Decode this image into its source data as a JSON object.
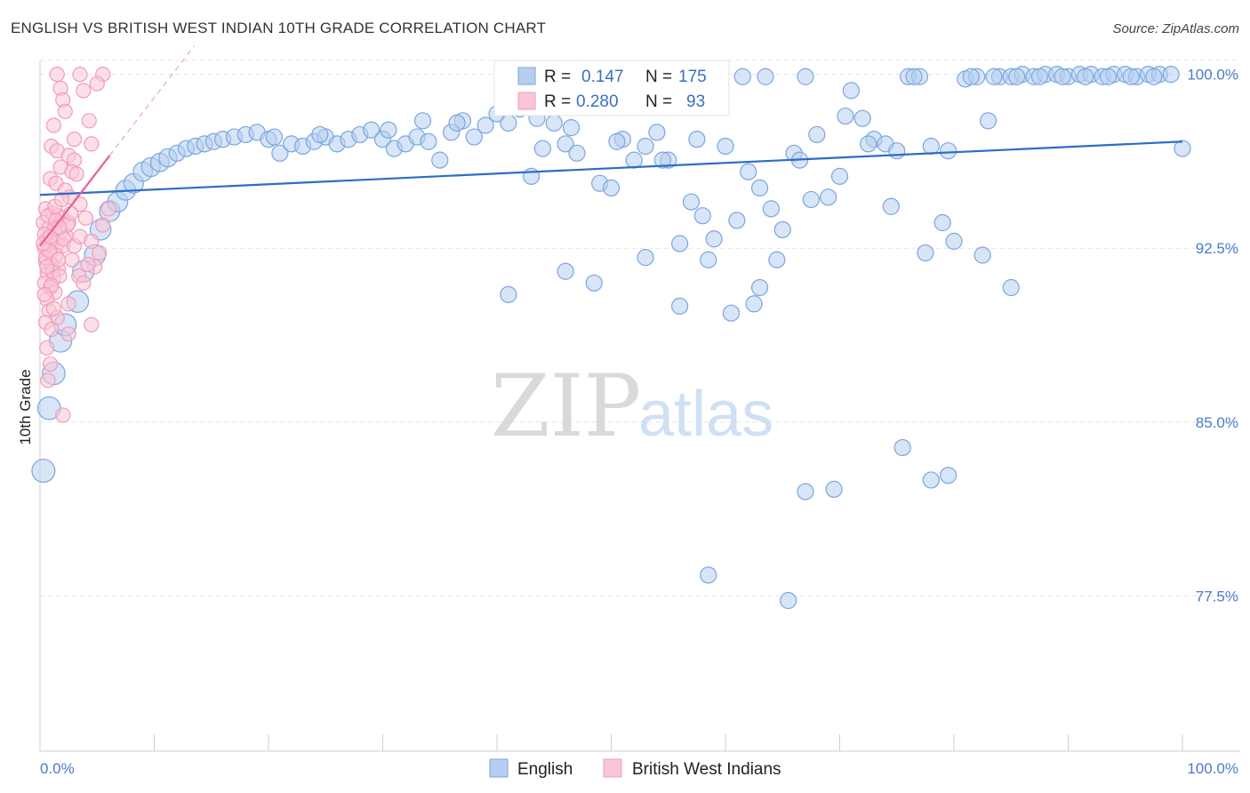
{
  "title": "ENGLISH VS BRITISH WEST INDIAN 10TH GRADE CORRELATION CHART",
  "source": "Source: ZipAtlas.com",
  "watermark": {
    "zip": "ZIP",
    "atlas": "atlas"
  },
  "chart_data": {
    "type": "scatter",
    "title": "ENGLISH VS BRITISH WEST INDIAN 10TH GRADE CORRELATION CHART",
    "xlabel": "",
    "ylabel": "10th Grade",
    "xlim": [
      0,
      100
    ],
    "ylim": [
      70.8,
      100.6
    ],
    "x_tick_labels": [
      "0.0%",
      "100.0%"
    ],
    "y_ticks": [
      77.5,
      85.0,
      92.5,
      100.0
    ],
    "y_tick_labels": [
      "77.5%",
      "85.0%",
      "92.5%",
      "100.0%"
    ],
    "grid": true,
    "legend_position": "bottom-center",
    "series": [
      {
        "name": "English",
        "color": "#7aa6e0",
        "line_color": "#2e6cc7",
        "R": "0.147",
        "N": "175",
        "trend": {
          "x": [
            0,
            100
          ],
          "y": [
            94.8,
            97.1
          ]
        },
        "points": [
          [
            0.3,
            82.9
          ],
          [
            0.8,
            85.6
          ],
          [
            1.2,
            87.1
          ],
          [
            1.8,
            88.5
          ],
          [
            2.2,
            89.2
          ],
          [
            3.3,
            90.2
          ],
          [
            3.8,
            91.5
          ],
          [
            4.8,
            92.2
          ],
          [
            5.3,
            93.3
          ],
          [
            6.1,
            94.1
          ],
          [
            6.8,
            94.5
          ],
          [
            7.5,
            95.0
          ],
          [
            8.2,
            95.3
          ],
          [
            9.0,
            95.8
          ],
          [
            9.7,
            96.0
          ],
          [
            10.5,
            96.2
          ],
          [
            11.2,
            96.4
          ],
          [
            12.0,
            96.6
          ],
          [
            12.8,
            96.8
          ],
          [
            13.6,
            96.9
          ],
          [
            14.4,
            97.0
          ],
          [
            15.2,
            97.1
          ],
          [
            16.0,
            97.2
          ],
          [
            17.0,
            97.3
          ],
          [
            18.0,
            97.4
          ],
          [
            19.0,
            97.5
          ],
          [
            20.0,
            97.2
          ],
          [
            21.0,
            96.6
          ],
          [
            22.0,
            97.0
          ],
          [
            23.0,
            96.9
          ],
          [
            24.0,
            97.1
          ],
          [
            25.0,
            97.3
          ],
          [
            26.0,
            97.0
          ],
          [
            27.0,
            97.2
          ],
          [
            28.0,
            97.4
          ],
          [
            29.0,
            97.6
          ],
          [
            30.0,
            97.2
          ],
          [
            31.0,
            96.8
          ],
          [
            32.0,
            97.0
          ],
          [
            33.0,
            97.3
          ],
          [
            34.0,
            97.1
          ],
          [
            35.0,
            96.3
          ],
          [
            36.0,
            97.5
          ],
          [
            37.0,
            98.0
          ],
          [
            38.0,
            97.3
          ],
          [
            39.0,
            97.8
          ],
          [
            40.0,
            98.3
          ],
          [
            41.0,
            97.9
          ],
          [
            42.0,
            98.5
          ],
          [
            43.0,
            95.6
          ],
          [
            44.0,
            96.8
          ],
          [
            45.0,
            97.9
          ],
          [
            46.0,
            97.0
          ],
          [
            47.0,
            96.6
          ],
          [
            48.0,
            98.7
          ],
          [
            49.0,
            95.3
          ],
          [
            50.0,
            95.1
          ],
          [
            51.0,
            97.2
          ],
          [
            52.0,
            96.3
          ],
          [
            53.0,
            96.9
          ],
          [
            54.0,
            97.5
          ],
          [
            55.0,
            96.3
          ],
          [
            56.0,
            92.7
          ],
          [
            57.0,
            94.5
          ],
          [
            58.0,
            93.9
          ],
          [
            59.0,
            92.9
          ],
          [
            60.0,
            96.9
          ],
          [
            61.0,
            93.7
          ],
          [
            62.0,
            95.8
          ],
          [
            63.0,
            95.1
          ],
          [
            64.0,
            94.2
          ],
          [
            65.0,
            93.3
          ],
          [
            66.0,
            96.6
          ],
          [
            67.0,
            99.9
          ],
          [
            68.0,
            97.4
          ],
          [
            69.0,
            94.7
          ],
          [
            70.0,
            95.6
          ],
          [
            71.0,
            99.3
          ],
          [
            72.0,
            98.1
          ],
          [
            73.0,
            97.2
          ],
          [
            74.0,
            97.0
          ],
          [
            75.0,
            96.7
          ],
          [
            76.0,
            99.9
          ],
          [
            77.0,
            99.9
          ],
          [
            78.0,
            96.9
          ],
          [
            79.0,
            93.6
          ],
          [
            80.0,
            92.8
          ],
          [
            81.0,
            99.8
          ],
          [
            82.0,
            99.9
          ],
          [
            83.0,
            98.0
          ],
          [
            84.0,
            99.9
          ],
          [
            85.0,
            99.9
          ],
          [
            86.0,
            100.0
          ],
          [
            87.0,
            99.9
          ],
          [
            88.0,
            100.0
          ],
          [
            89.0,
            100.0
          ],
          [
            90.0,
            99.9
          ],
          [
            91.0,
            100.0
          ],
          [
            92.0,
            100.0
          ],
          [
            93.0,
            99.9
          ],
          [
            94.0,
            100.0
          ],
          [
            95.0,
            100.0
          ],
          [
            96.0,
            99.9
          ],
          [
            97.0,
            100.0
          ],
          [
            98.0,
            100.0
          ],
          [
            99.0,
            100.0
          ],
          [
            100.0,
            96.8
          ],
          [
            20.5,
            97.3
          ],
          [
            24.5,
            97.4
          ],
          [
            30.5,
            97.6
          ],
          [
            33.5,
            98.0
          ],
          [
            36.5,
            97.9
          ],
          [
            41.5,
            98.8
          ],
          [
            43.5,
            98.1
          ],
          [
            46.5,
            97.7
          ],
          [
            50.5,
            97.1
          ],
          [
            52.5,
            99.6
          ],
          [
            54.5,
            96.3
          ],
          [
            57.5,
            97.2
          ],
          [
            59.5,
            99.0
          ],
          [
            61.5,
            99.9
          ],
          [
            63.5,
            99.9
          ],
          [
            64.5,
            92.0
          ],
          [
            66.5,
            96.3
          ],
          [
            67.5,
            94.6
          ],
          [
            70.5,
            98.2
          ],
          [
            72.5,
            97.0
          ],
          [
            74.5,
            94.3
          ],
          [
            76.5,
            99.9
          ],
          [
            77.5,
            92.3
          ],
          [
            79.5,
            96.7
          ],
          [
            81.5,
            99.9
          ],
          [
            83.5,
            99.9
          ],
          [
            85.5,
            99.9
          ],
          [
            87.5,
            99.9
          ],
          [
            89.5,
            99.9
          ],
          [
            91.5,
            99.9
          ],
          [
            93.5,
            99.9
          ],
          [
            95.5,
            99.9
          ],
          [
            97.5,
            99.9
          ],
          [
            41.0,
            90.5
          ],
          [
            46.0,
            91.5
          ],
          [
            48.5,
            91.0
          ],
          [
            53.0,
            92.1
          ],
          [
            56.0,
            90.0
          ],
          [
            58.5,
            92.0
          ],
          [
            60.5,
            89.7
          ],
          [
            62.5,
            90.1
          ],
          [
            63.0,
            90.8
          ],
          [
            82.5,
            92.2
          ],
          [
            85.0,
            90.8
          ],
          [
            75.5,
            83.9
          ],
          [
            78.0,
            82.5
          ],
          [
            79.5,
            82.7
          ],
          [
            67.0,
            82.0
          ],
          [
            69.5,
            82.1
          ],
          [
            58.5,
            78.4
          ],
          [
            65.5,
            77.3
          ]
        ]
      },
      {
        "name": "British West Indians",
        "color": "#f29bb8",
        "line_color": "#e8608e",
        "R": "0.280",
        "N": "93",
        "trend": {
          "x": [
            0,
            6.1
          ],
          "y": [
            92.6,
            96.5
          ]
        },
        "points": [
          [
            1.5,
            100.0
          ],
          [
            3.5,
            100.0
          ],
          [
            5.5,
            100.0
          ],
          [
            1.8,
            99.4
          ],
          [
            3.8,
            99.3
          ],
          [
            5.0,
            99.6
          ],
          [
            2.0,
            98.9
          ],
          [
            2.2,
            98.4
          ],
          [
            4.3,
            98.0
          ],
          [
            1.2,
            97.8
          ],
          [
            3.0,
            97.2
          ],
          [
            4.5,
            97.0
          ],
          [
            1.0,
            96.9
          ],
          [
            1.5,
            96.7
          ],
          [
            2.5,
            96.5
          ],
          [
            3.0,
            96.3
          ],
          [
            1.8,
            96.0
          ],
          [
            2.8,
            95.8
          ],
          [
            3.2,
            95.7
          ],
          [
            0.9,
            95.5
          ],
          [
            1.4,
            95.3
          ],
          [
            2.2,
            95.0
          ],
          [
            2.6,
            94.7
          ],
          [
            3.5,
            94.4
          ],
          [
            0.5,
            94.2
          ],
          [
            1.1,
            94.0
          ],
          [
            1.6,
            93.9
          ],
          [
            2.0,
            93.8
          ],
          [
            2.5,
            93.6
          ],
          [
            0.3,
            93.6
          ],
          [
            0.8,
            93.4
          ],
          [
            1.2,
            93.3
          ],
          [
            1.8,
            93.2
          ],
          [
            2.3,
            93.0
          ],
          [
            0.6,
            92.9
          ],
          [
            1.0,
            92.8
          ],
          [
            1.5,
            92.7
          ],
          [
            2.0,
            92.6
          ],
          [
            0.4,
            92.5
          ],
          [
            0.9,
            92.3
          ],
          [
            1.4,
            92.2
          ],
          [
            2.8,
            92.0
          ],
          [
            0.5,
            91.9
          ],
          [
            1.0,
            91.8
          ],
          [
            1.6,
            91.6
          ],
          [
            0.7,
            91.4
          ],
          [
            1.2,
            91.2
          ],
          [
            0.4,
            91.0
          ],
          [
            0.9,
            90.8
          ],
          [
            1.3,
            90.6
          ],
          [
            0.6,
            90.3
          ],
          [
            2.5,
            90.1
          ],
          [
            0.8,
            89.8
          ],
          [
            1.5,
            89.5
          ],
          [
            0.5,
            89.3
          ],
          [
            1.0,
            89.0
          ],
          [
            2.5,
            88.8
          ],
          [
            4.5,
            89.2
          ],
          [
            0.6,
            88.2
          ],
          [
            0.9,
            87.5
          ],
          [
            0.7,
            86.8
          ],
          [
            2.0,
            85.3
          ],
          [
            0.4,
            93.1
          ],
          [
            0.7,
            93.9
          ],
          [
            1.3,
            94.3
          ],
          [
            1.9,
            94.6
          ],
          [
            2.4,
            93.5
          ],
          [
            0.5,
            92.1
          ],
          [
            1.1,
            91.5
          ],
          [
            1.7,
            91.3
          ],
          [
            2.1,
            92.9
          ],
          [
            0.8,
            92.4
          ],
          [
            1.4,
            93.7
          ],
          [
            0.3,
            92.7
          ],
          [
            0.6,
            91.7
          ],
          [
            1.0,
            90.9
          ],
          [
            1.6,
            92.0
          ],
          [
            3.0,
            92.6
          ],
          [
            3.5,
            93.0
          ],
          [
            4.0,
            93.8
          ],
          [
            4.5,
            92.8
          ],
          [
            4.8,
            91.7
          ],
          [
            5.2,
            92.3
          ],
          [
            5.5,
            93.5
          ],
          [
            6.0,
            94.2
          ],
          [
            0.9,
            93.0
          ],
          [
            1.7,
            93.4
          ],
          [
            2.7,
            94.0
          ],
          [
            3.4,
            91.3
          ],
          [
            3.8,
            91.0
          ],
          [
            4.2,
            91.8
          ],
          [
            0.4,
            90.5
          ],
          [
            1.2,
            89.9
          ]
        ]
      }
    ]
  }
}
